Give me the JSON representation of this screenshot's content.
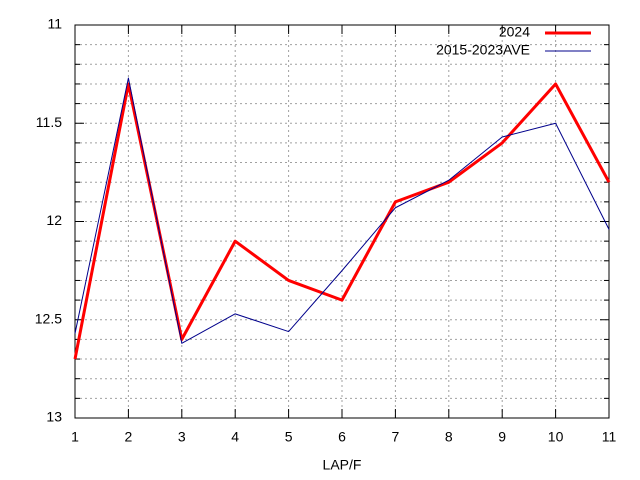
{
  "chart_data": {
    "type": "line",
    "x_label": "LAP/F",
    "x": [
      1,
      2,
      3,
      4,
      5,
      6,
      7,
      8,
      9,
      10,
      11
    ],
    "xlim": [
      1,
      11
    ],
    "xticks": [
      1,
      2,
      3,
      4,
      5,
      6,
      7,
      8,
      9,
      10,
      11
    ],
    "ylim": [
      13,
      11
    ],
    "yticks": [
      11,
      11.5,
      12,
      12.5,
      13
    ],
    "y_minor_ticks": [
      11.1,
      11.2,
      11.3,
      11.4,
      11.6,
      11.7,
      11.8,
      11.9,
      12.1,
      12.2,
      12.3,
      12.4,
      12.6,
      12.7,
      12.8,
      12.9
    ],
    "grid": true,
    "legend": "upper right",
    "series": [
      {
        "name": "2024",
        "color": "#ff0000",
        "width": 3,
        "values": [
          12.7,
          11.3,
          12.6,
          12.1,
          12.3,
          12.4,
          11.9,
          11.8,
          11.6,
          11.3,
          11.8
        ]
      },
      {
        "name": "2015-2023AVE",
        "color": "#00008b",
        "width": 1,
        "values": [
          12.57,
          11.27,
          12.62,
          12.47,
          12.56,
          12.25,
          11.93,
          11.79,
          11.57,
          11.5,
          12.04
        ]
      }
    ]
  }
}
